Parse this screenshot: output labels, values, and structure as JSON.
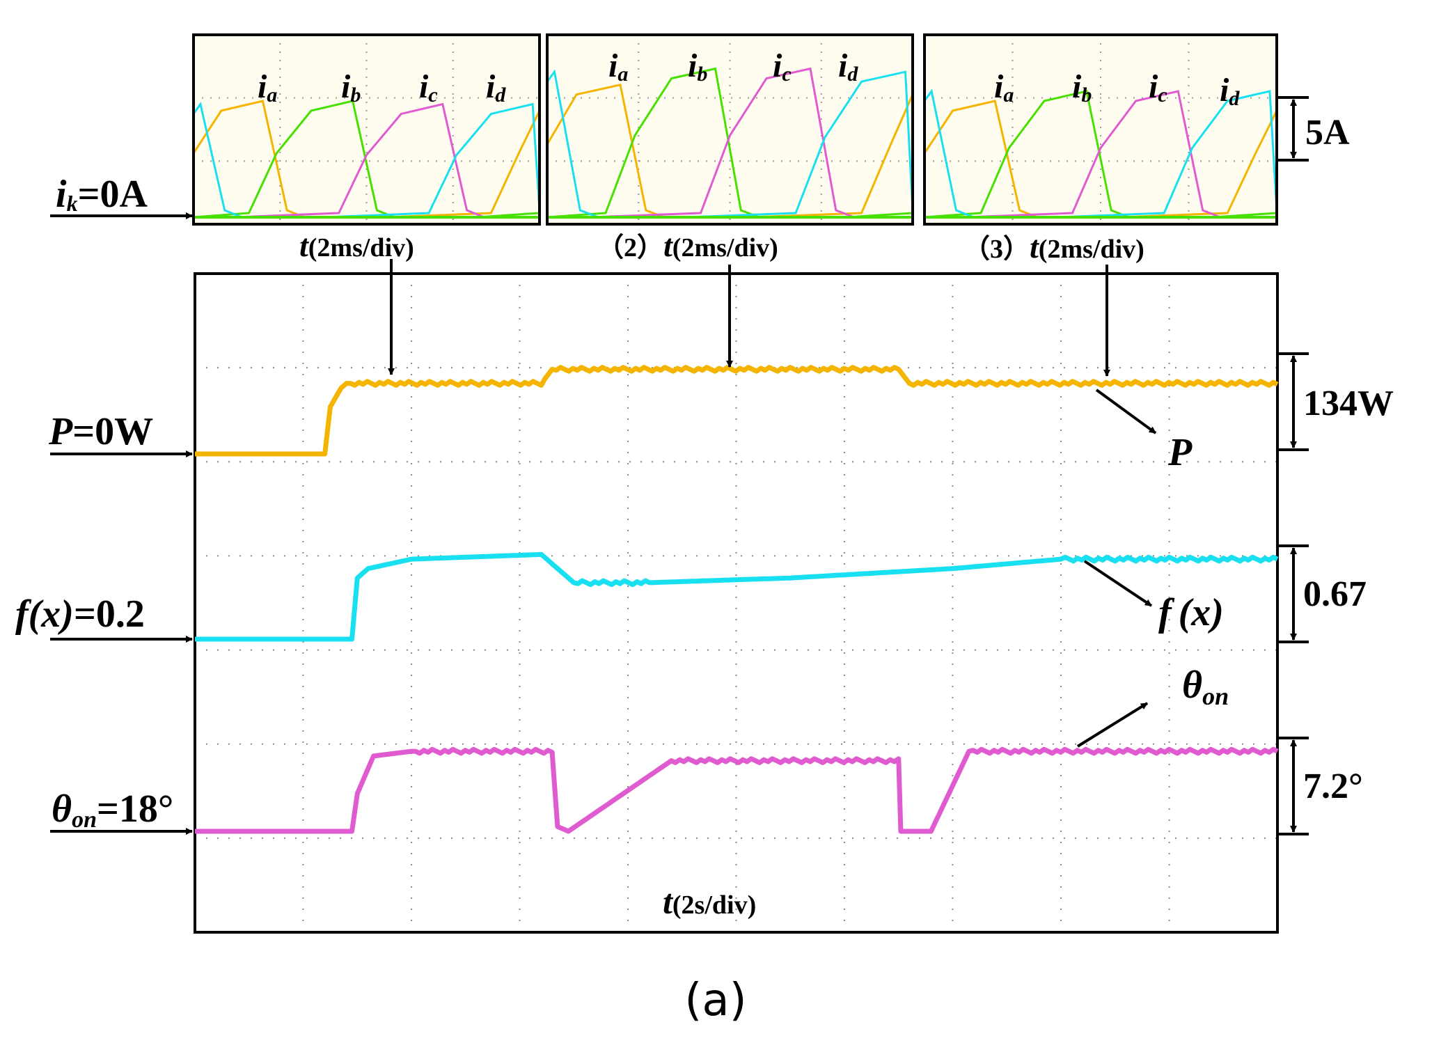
{
  "chart_data": {
    "type": "line",
    "figure_label": "(a)",
    "colors": {
      "ia": "#f4b400",
      "ib": "#48e000",
      "ic": "#e05ad0",
      "id": "#18e0f0",
      "P": "#f4b400",
      "f": "#18e0f0",
      "theta": "#e05ad0",
      "grid": "#888888"
    },
    "insets": [
      {
        "prefix": "",
        "time_label_var": "t",
        "time_label_unit": "(2ms/div)",
        "phase_labels": [
          "i",
          "i",
          "i",
          "i"
        ],
        "phase_subs": [
          "a",
          "b",
          "c",
          "d"
        ],
        "zero_label": "i",
        "zero_sub": "k",
        "zero_value": "=0A"
      },
      {
        "prefix": "（2）",
        "time_label_var": "t",
        "time_label_unit": "(2ms/div)"
      },
      {
        "prefix": "（3）",
        "time_label_var": "t",
        "time_label_unit": "(2ms/div)"
      }
    ],
    "current_scale": "5A",
    "x_axis": {
      "var": "t",
      "unit": "(2s/div)",
      "divisions": 10,
      "xlim_div": [
        0,
        10
      ]
    },
    "series": [
      {
        "name": "P",
        "zero_label": "P",
        "zero_value": "=0W",
        "scale": "134W",
        "trace_label": "P",
        "unit_per_div": 134,
        "x_div": [
          0,
          1.2,
          1.25,
          1.35,
          1.4,
          3.2,
          3.3,
          6.5,
          6.6,
          10
        ],
        "y_div": [
          0,
          0,
          0.5,
          0.7,
          0.75,
          0.75,
          0.9,
          0.9,
          0.75,
          0.75
        ]
      },
      {
        "name": "f(x)",
        "zero_label": "f(x)",
        "zero_value": "=0.2",
        "scale": "0.67",
        "trace_label_f": "f",
        "trace_label_x": "(x)",
        "unit_per_div": 0.67,
        "x_div": [
          0,
          1.45,
          1.5,
          1.6,
          2.0,
          3.2,
          3.5,
          4.2,
          5.5,
          7.0,
          8.0,
          10
        ],
        "y_div": [
          0,
          0,
          0.65,
          0.75,
          0.85,
          0.9,
          0.6,
          0.6,
          0.65,
          0.75,
          0.85,
          0.85
        ]
      },
      {
        "name": "theta_on",
        "zero_label": "θ",
        "zero_sub": "on",
        "zero_value": "=18°",
        "scale": "7.2°",
        "trace_label": "θ",
        "trace_sub": "on",
        "unit_per_div": 7.2,
        "x_div": [
          0,
          1.45,
          1.5,
          1.65,
          2.0,
          3.3,
          3.35,
          3.45,
          4.4,
          6.5,
          6.52,
          6.8,
          7.15,
          10
        ],
        "y_div": [
          0,
          0,
          0.4,
          0.8,
          0.85,
          0.85,
          0.05,
          0,
          0.75,
          0.75,
          0,
          0,
          0.85,
          0.85
        ]
      }
    ]
  }
}
